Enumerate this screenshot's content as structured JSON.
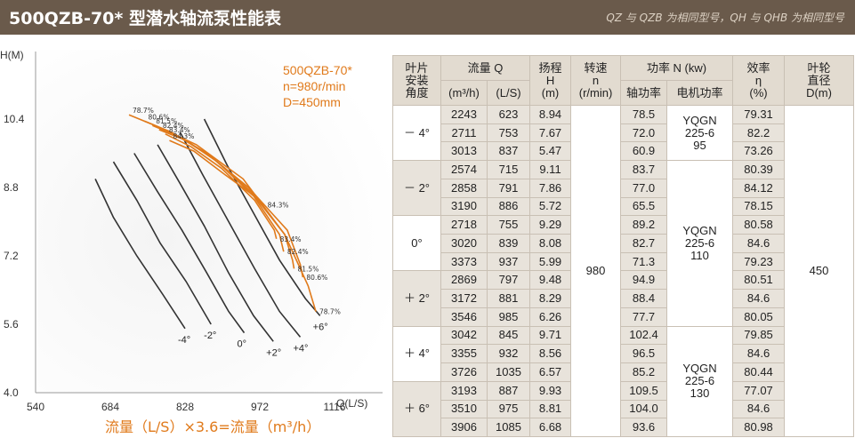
{
  "header": {
    "title": "500QZB-70* 型潜水轴流泵性能表",
    "note": "QZ 与 QZB 为相同型号，QH 与 QHB 为相同型号"
  },
  "chart_data": {
    "type": "line",
    "title": "",
    "model_lines": [
      "500QZB-70*",
      "n=980r/min",
      "D=450mm"
    ],
    "xlabel": "Q(L/S)",
    "ylabel": "H(M)",
    "xlim": [
      540,
      1116
    ],
    "ylim": [
      4.0,
      10.4
    ],
    "x_ticks": [
      "540",
      "684",
      "828",
      "972",
      "1116"
    ],
    "y_ticks": [
      "10.4",
      "8.8",
      "7.2",
      "5.6",
      "4.0"
    ],
    "footnote": "流量（L/S）×3.6=流量（m³/h）",
    "blade_angle_lines": [
      {
        "name": "-4°",
        "points": [
          [
            655,
            9.0
          ],
          [
            690,
            8.1
          ],
          [
            735,
            7.2
          ],
          [
            785,
            6.3
          ],
          [
            828,
            5.5
          ]
        ]
      },
      {
        "name": "-2°",
        "points": [
          [
            690,
            9.4
          ],
          [
            735,
            8.5
          ],
          [
            780,
            7.5
          ],
          [
            830,
            6.6
          ],
          [
            878,
            5.6
          ]
        ]
      },
      {
        "name": "0°",
        "points": [
          [
            730,
            9.6
          ],
          [
            775,
            8.7
          ],
          [
            822,
            7.8
          ],
          [
            870,
            6.8
          ],
          [
            912,
            5.9
          ],
          [
            942,
            5.4
          ]
        ]
      },
      {
        "name": "+2°",
        "points": [
          [
            775,
            9.8
          ],
          [
            818,
            8.9
          ],
          [
            865,
            7.9
          ],
          [
            912,
            6.8
          ],
          [
            960,
            5.8
          ],
          [
            998,
            5.2
          ]
        ]
      },
      {
        "name": "+4°",
        "points": [
          [
            818,
            10.1
          ],
          [
            862,
            9.1
          ],
          [
            912,
            8.0
          ],
          [
            962,
            6.9
          ],
          [
            1010,
            5.9
          ],
          [
            1050,
            5.3
          ]
        ]
      },
      {
        "name": "+6°",
        "points": [
          [
            865,
            10.4
          ],
          [
            910,
            9.3
          ],
          [
            960,
            8.2
          ],
          [
            1010,
            7.1
          ],
          [
            1060,
            6.2
          ],
          [
            1088,
            5.8
          ]
        ]
      }
    ],
    "efficiency_contours": [
      {
        "label": "78.7%",
        "points": [
          [
            720,
            10.5
          ],
          [
            770,
            10.25
          ],
          [
            850,
            9.8
          ],
          [
            940,
            9.0
          ],
          [
            1020,
            7.7
          ],
          [
            1065,
            6.5
          ],
          [
            1080,
            5.9
          ]
        ]
      },
      {
        "label": "80.6%",
        "points": [
          [
            750,
            10.35
          ],
          [
            800,
            10.1
          ],
          [
            870,
            9.6
          ],
          [
            950,
            8.8
          ],
          [
            1025,
            7.8
          ],
          [
            1050,
            7.0
          ],
          [
            1055,
            6.7
          ]
        ]
      },
      {
        "label": "81.5%",
        "points": [
          [
            765,
            10.25
          ],
          [
            815,
            10.0
          ],
          [
            880,
            9.5
          ],
          [
            955,
            8.7
          ],
          [
            1020,
            7.7
          ],
          [
            1035,
            7.1
          ],
          [
            1038,
            6.9
          ]
        ]
      },
      {
        "label": "82.4%",
        "points": [
          [
            778,
            10.15
          ],
          [
            830,
            9.9
          ],
          [
            890,
            9.4
          ],
          [
            960,
            8.6
          ],
          [
            1010,
            7.7
          ],
          [
            1018,
            7.3
          ]
        ]
      },
      {
        "label": "83.4%",
        "points": [
          [
            790,
            10.05
          ],
          [
            840,
            9.75
          ],
          [
            898,
            9.25
          ],
          [
            962,
            8.5
          ],
          [
            1000,
            7.8
          ],
          [
            1004,
            7.6
          ]
        ]
      },
      {
        "label": "84.3%",
        "points": [
          [
            798,
            9.9
          ],
          [
            845,
            9.65
          ],
          [
            905,
            9.1
          ],
          [
            950,
            8.7
          ],
          [
            980,
            8.4
          ]
        ]
      }
    ]
  },
  "table": {
    "headers": {
      "blade_angle": [
        "叶片",
        "安装",
        "角度"
      ],
      "flow": "流量 Q",
      "flow_m3h": "(m³/h)",
      "flow_ls": "(L/S)",
      "head": [
        "扬程",
        "H",
        "(m)"
      ],
      "speed": [
        "转速",
        "n",
        "(r/min)"
      ],
      "power": "功率 N  (kw)",
      "shaft_power": "轴功率",
      "motor_power": "电机功率",
      "efficiency": [
        "效率",
        "η",
        "(%)"
      ],
      "impeller": [
        "叶轮",
        "直径",
        "D(m)"
      ]
    },
    "speed_value": "980",
    "impeller_value": "450",
    "groups": [
      {
        "angle": "－ 4°",
        "motor": [
          "YQGN",
          "225-6",
          "95"
        ],
        "rows": [
          [
            "2243",
            "623",
            "8.94",
            "78.5",
            "79.31"
          ],
          [
            "2711",
            "753",
            "7.67",
            "72.0",
            "82.2"
          ],
          [
            "3013",
            "837",
            "5.47",
            "60.9",
            "73.26"
          ]
        ]
      },
      {
        "angle": "－ 2°",
        "motor": [
          "YQGN",
          "225-6",
          "110"
        ],
        "rows": [
          [
            "2574",
            "715",
            "9.11",
            "83.7",
            "80.39"
          ],
          [
            "2858",
            "791",
            "7.86",
            "77.0",
            "84.12"
          ],
          [
            "3190",
            "886",
            "5.72",
            "65.5",
            "78.15"
          ]
        ]
      },
      {
        "angle": "0°",
        "rows": [
          [
            "2718",
            "755",
            "9.29",
            "89.2",
            "80.58"
          ],
          [
            "3020",
            "839",
            "8.08",
            "82.7",
            "84.6"
          ],
          [
            "3373",
            "937",
            "5.99",
            "71.3",
            "79.23"
          ]
        ]
      },
      {
        "angle": "＋ 2°",
        "rows": [
          [
            "2869",
            "797",
            "9.48",
            "94.9",
            "80.51"
          ],
          [
            "3172",
            "881",
            "8.29",
            "88.4",
            "84.6"
          ],
          [
            "3546",
            "985",
            "6.26",
            "77.7",
            "80.05"
          ]
        ]
      },
      {
        "angle": "＋ 4°",
        "motor": [
          "YQGN",
          "225-6",
          "130"
        ],
        "rows": [
          [
            "3042",
            "845",
            "9.71",
            "102.4",
            "79.85"
          ],
          [
            "3355",
            "932",
            "8.56",
            "96.5",
            "84.6"
          ],
          [
            "3726",
            "1035",
            "6.57",
            "85.2",
            "80.44"
          ]
        ]
      },
      {
        "angle": "＋ 6°",
        "rows": [
          [
            "3193",
            "887",
            "9.93",
            "109.5",
            "77.07"
          ],
          [
            "3510",
            "975",
            "8.81",
            "104.0",
            "84.6"
          ],
          [
            "3906",
            "1085",
            "6.68",
            "93.6",
            "80.98"
          ]
        ]
      }
    ]
  }
}
